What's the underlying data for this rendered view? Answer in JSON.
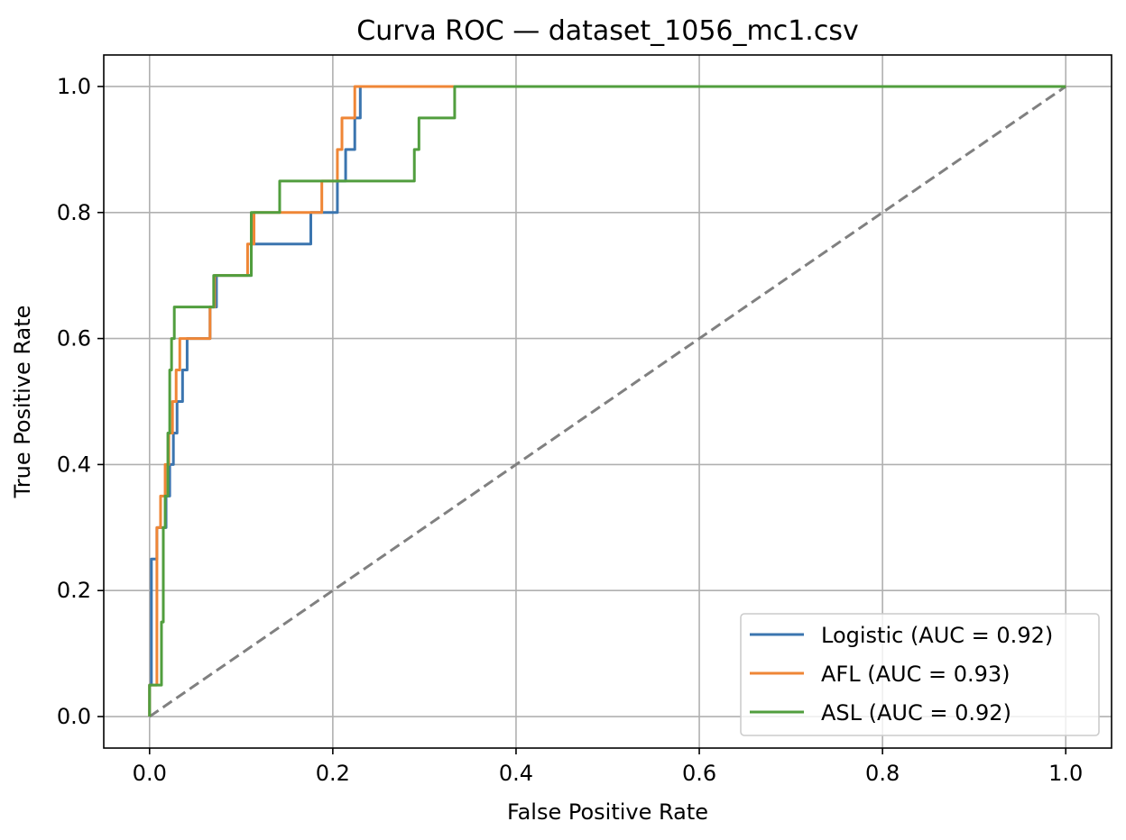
{
  "chart_data": {
    "type": "line",
    "title": "Curva ROC — dataset_1056_mc1.csv",
    "xlabel": "False Positive Rate",
    "ylabel": "True Positive Rate",
    "xlim": [
      -0.05,
      1.05
    ],
    "ylim": [
      -0.05,
      1.05
    ],
    "xticks": [
      0.0,
      0.2,
      0.4,
      0.6,
      0.8,
      1.0
    ],
    "yticks": [
      0.0,
      0.2,
      0.4,
      0.6,
      0.8,
      1.0
    ],
    "xtick_labels": [
      "0.0",
      "0.2",
      "0.4",
      "0.6",
      "0.8",
      "1.0"
    ],
    "ytick_labels": [
      "0.0",
      "0.2",
      "0.4",
      "0.6",
      "0.8",
      "1.0"
    ],
    "grid": true,
    "legend_position": "lower-right",
    "series": [
      {
        "name": "Logistic (AUC = 0.92)",
        "color": "#3b75af",
        "x": [
          0,
          0,
          0.002,
          0.002,
          0.008,
          0.008,
          0.018,
          0.018,
          0.022,
          0.022,
          0.026,
          0.026,
          0.03,
          0.03,
          0.036,
          0.036,
          0.041,
          0.041,
          0.066,
          0.066,
          0.073,
          0.073,
          0.092,
          0.092,
          0.111,
          0.111,
          0.114,
          0.114,
          0.176,
          0.176,
          0.205,
          0.205,
          0.21,
          0.21,
          0.214,
          0.214,
          0.224,
          0.224,
          0.23,
          0.23,
          1.0
        ],
        "y": [
          0,
          0.05,
          0.05,
          0.25,
          0.25,
          0.3,
          0.3,
          0.35,
          0.35,
          0.4,
          0.4,
          0.45,
          0.45,
          0.5,
          0.5,
          0.55,
          0.55,
          0.6,
          0.6,
          0.65,
          0.65,
          0.7,
          0.7,
          0.7,
          0.7,
          0.75,
          0.75,
          0.75,
          0.75,
          0.8,
          0.8,
          0.85,
          0.85,
          0.85,
          0.85,
          0.9,
          0.9,
          0.95,
          0.95,
          1.0,
          1.0
        ]
      },
      {
        "name": "AFL (AUC = 0.93)",
        "color": "#ef8636",
        "x": [
          0,
          0,
          0.008,
          0.008,
          0.012,
          0.012,
          0.017,
          0.017,
          0.021,
          0.021,
          0.025,
          0.025,
          0.029,
          0.029,
          0.033,
          0.033,
          0.066,
          0.066,
          0.071,
          0.071,
          0.107,
          0.107,
          0.114,
          0.114,
          0.188,
          0.188,
          0.205,
          0.205,
          0.21,
          0.21,
          0.224,
          0.224,
          0.231,
          0.231,
          0.332,
          1.0
        ],
        "y": [
          0,
          0.05,
          0.05,
          0.3,
          0.3,
          0.35,
          0.35,
          0.4,
          0.4,
          0.45,
          0.45,
          0.5,
          0.5,
          0.55,
          0.55,
          0.6,
          0.6,
          0.65,
          0.65,
          0.7,
          0.7,
          0.75,
          0.75,
          0.8,
          0.8,
          0.85,
          0.85,
          0.9,
          0.9,
          0.95,
          0.95,
          1.0,
          1.0,
          1.0,
          1.0,
          1.0
        ]
      },
      {
        "name": "ASL (AUC = 0.92)",
        "color": "#519e3e",
        "x": [
          0,
          0,
          0.013,
          0.013,
          0.015,
          0.015,
          0.017,
          0.017,
          0.02,
          0.02,
          0.022,
          0.022,
          0.024,
          0.024,
          0.027,
          0.027,
          0.07,
          0.07,
          0.111,
          0.111,
          0.142,
          0.142,
          0.289,
          0.289,
          0.294,
          0.294,
          0.333,
          0.333,
          1.0
        ],
        "y": [
          0,
          0.05,
          0.05,
          0.15,
          0.15,
          0.3,
          0.3,
          0.35,
          0.35,
          0.45,
          0.45,
          0.55,
          0.55,
          0.6,
          0.6,
          0.65,
          0.65,
          0.7,
          0.7,
          0.8,
          0.8,
          0.85,
          0.85,
          0.9,
          0.9,
          0.95,
          0.95,
          1.0,
          1.0
        ]
      }
    ],
    "reference_line": {
      "color": "#808080",
      "style": "dashed",
      "x": [
        0,
        1
      ],
      "y": [
        0,
        1
      ]
    }
  }
}
